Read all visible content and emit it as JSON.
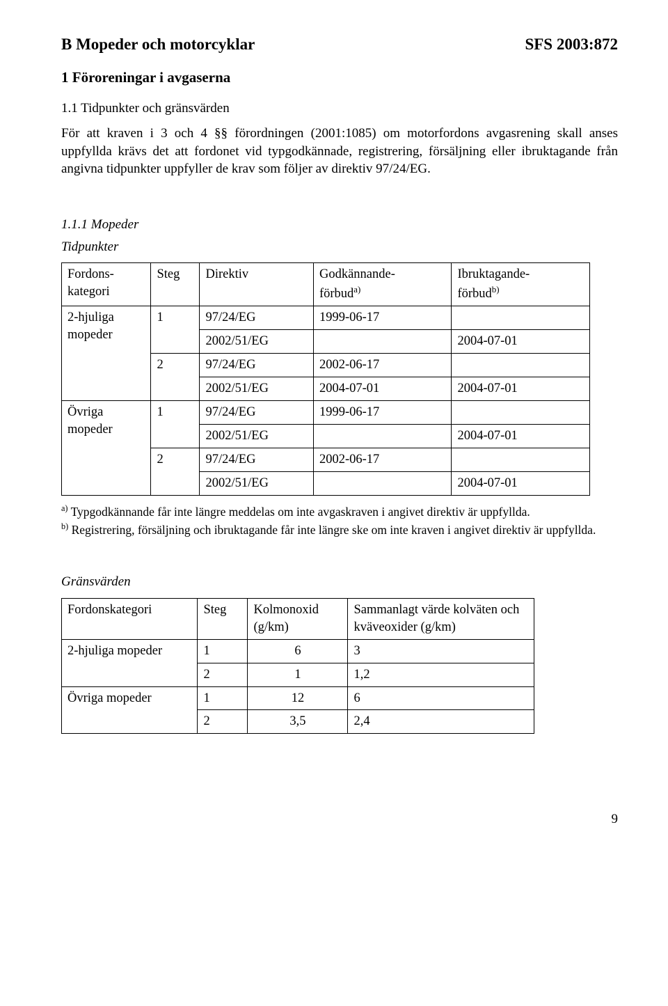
{
  "header": {
    "title": "B Mopeder och motorcyklar",
    "sfs": "SFS 2003:872"
  },
  "section1": {
    "heading": "1 Föroreningar i avgaserna",
    "sub11": "1.1 Tidpunkter och gränsvärden",
    "para": "För att kraven i 3 och 4 §§ förordningen (2001:1085) om motorfordons avgasrening skall anses uppfyllda krävs det att fordonet vid typgodkännade, registrering, försäljning eller ibruktagande från angivna tidpunkter uppfyller de krav som följer av direktiv 97/24/EG.",
    "sub111": "1.1.1 Mopeder",
    "tidpunkter": "Tidpunkter"
  },
  "table1": {
    "headers": {
      "c1": "Fordons-\nkategori",
      "c2": "Steg",
      "c3": "Direktiv",
      "c4": "Godkännande-\nförbud",
      "c4sup": "a)",
      "c5": "Ibruktagande-\nförbud",
      "c5sup": "b)"
    },
    "rows": [
      {
        "cat": "2-hjuliga\nmopeder",
        "steg": "1",
        "dir": "97/24/EG",
        "gk": "1999-06-17",
        "ib": ""
      },
      {
        "dir": "2002/51/EG",
        "gk": "",
        "ib": "2004-07-01"
      },
      {
        "steg": "2",
        "dir": "97/24/EG",
        "gk": "2002-06-17",
        "ib": ""
      },
      {
        "dir": "2002/51/EG",
        "gk": "2004-07-01",
        "ib": "2004-07-01"
      },
      {
        "cat": "Övriga\nmopeder",
        "steg": "1",
        "dir": "97/24/EG",
        "gk": "1999-06-17",
        "ib": ""
      },
      {
        "dir": "2002/51/EG",
        "gk": "",
        "ib": "2004-07-01"
      },
      {
        "steg": "2",
        "dir": "97/24/EG",
        "gk": "2002-06-17",
        "ib": ""
      },
      {
        "dir": "2002/51/EG",
        "gk": "",
        "ib": "2004-07-01"
      }
    ]
  },
  "footnotes": {
    "a_pre": "a)",
    "a": " Typgodkännande får inte längre meddelas om inte avgaskraven i angivet direktiv är uppfyllda.",
    "b_pre": "b)",
    "b": " Registrering, försäljning och ibruktagande får inte längre ske om inte kraven i angivet direktiv är uppfyllda."
  },
  "gransvarden": {
    "heading": "Gränsvärden",
    "headers": {
      "c1": "Fordonskategori",
      "c2": "Steg",
      "c3": "Kolmonoxid\n(g/km)",
      "c4": "Sammanlagt värde kolväten och kväveoxider (g/km)"
    },
    "rows": [
      {
        "cat": "2-hjuliga mopeder",
        "steg": "1",
        "co": "6",
        "hv": "3"
      },
      {
        "steg": "2",
        "co": "1",
        "hv": "1,2"
      },
      {
        "cat": "Övriga mopeder",
        "steg": "1",
        "co": "12",
        "hv": "6"
      },
      {
        "steg": "2",
        "co": "3,5",
        "hv": "2,4"
      }
    ]
  },
  "page": "9"
}
